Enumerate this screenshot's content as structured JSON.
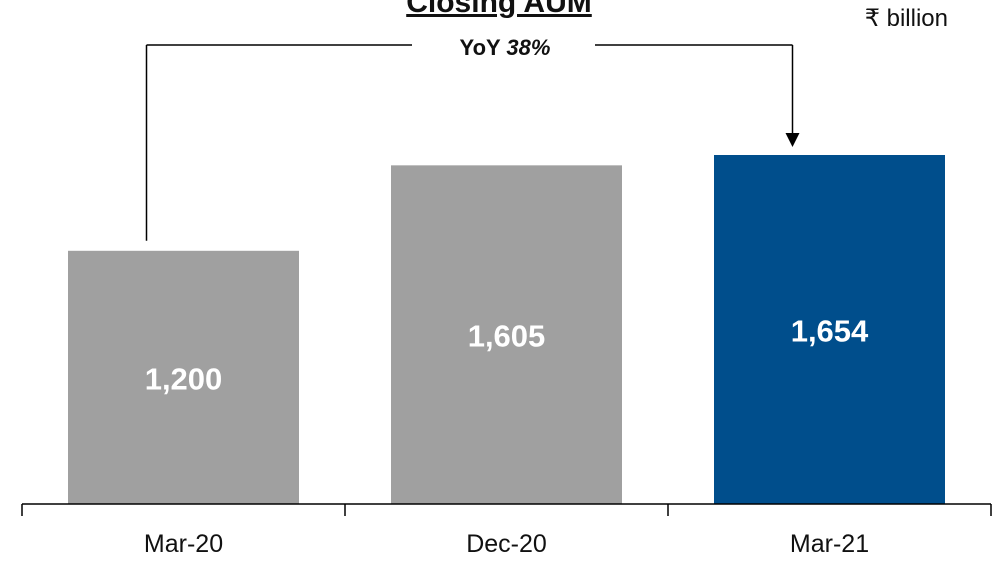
{
  "chart_data": {
    "type": "bar",
    "title": "Closing AUM",
    "unit": "₹ billion",
    "categories": [
      "Mar-20",
      "Dec-20",
      "Mar-21"
    ],
    "values": [
      1200,
      1605,
      1654
    ],
    "value_labels": [
      "1,200",
      "1,605",
      "1,654"
    ],
    "colors": [
      "#a0a0a0",
      "#a0a0a0",
      "#004e8c"
    ],
    "annotation": {
      "prefix": "YoY ",
      "value": "38%",
      "from": "Mar-20",
      "to": "Mar-21"
    },
    "grid": false,
    "legend": "none"
  }
}
